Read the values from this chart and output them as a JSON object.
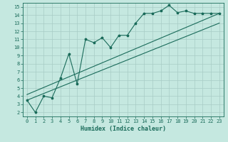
{
  "title": "",
  "xlabel": "Humidex (Indice chaleur)",
  "ylabel": "",
  "xlim": [
    -0.5,
    23.5
  ],
  "ylim": [
    1.5,
    15.5
  ],
  "xticks": [
    0,
    1,
    2,
    3,
    4,
    5,
    6,
    7,
    8,
    9,
    10,
    11,
    12,
    13,
    14,
    15,
    16,
    17,
    18,
    19,
    20,
    21,
    22,
    23
  ],
  "yticks": [
    2,
    3,
    4,
    5,
    6,
    7,
    8,
    9,
    10,
    11,
    12,
    13,
    14,
    15
  ],
  "bg_color": "#c5e8e0",
  "grid_color": "#a8ccc5",
  "line_color": "#1a6b5a",
  "data_x": [
    0,
    1,
    2,
    3,
    4,
    5,
    6,
    7,
    8,
    9,
    10,
    11,
    12,
    13,
    14,
    15,
    16,
    17,
    18,
    19,
    20,
    21,
    22,
    23
  ],
  "data_y": [
    3.5,
    2.0,
    4.0,
    3.8,
    6.2,
    9.2,
    5.5,
    11.0,
    10.6,
    11.2,
    10.0,
    11.5,
    11.5,
    13.0,
    14.2,
    14.2,
    14.5,
    15.2,
    14.3,
    14.5,
    14.2,
    14.2,
    14.2,
    14.2
  ],
  "line1_x": [
    0,
    23
  ],
  "line1_y": [
    3.5,
    13.0
  ],
  "line2_x": [
    0,
    23
  ],
  "line2_y": [
    4.2,
    14.2
  ],
  "font_size_axis": 6,
  "font_size_tick": 5
}
